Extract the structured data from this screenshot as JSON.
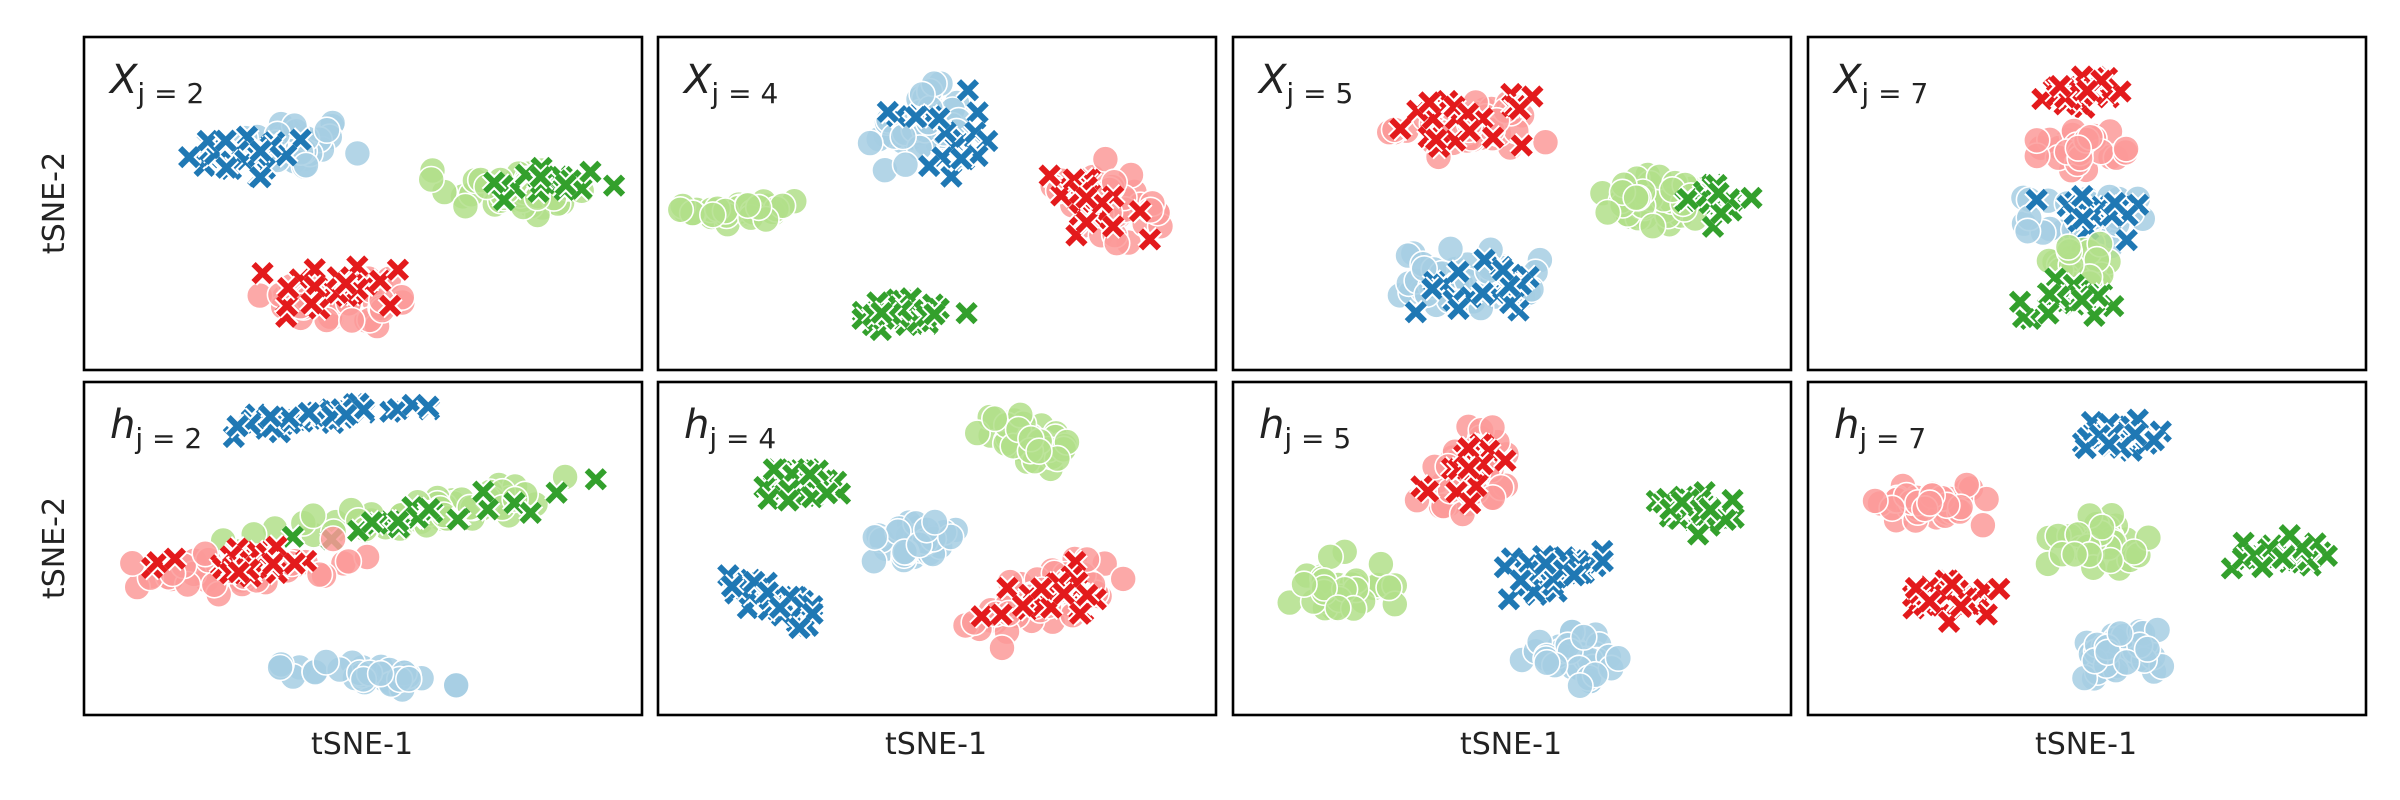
{
  "figure": {
    "ylabel": "tSNE-2",
    "xlabel": "tSNE-1"
  },
  "chart_data": {
    "type": "scatter",
    "grid": false,
    "ticks": false,
    "xlabel": "tSNE-1",
    "ylabel": "tSNE-2",
    "xlim": [
      0,
      100
    ],
    "ylim": [
      0,
      100
    ],
    "classes": [
      {
        "id": "A",
        "color": "#a6cee3",
        "marker": "circle"
      },
      {
        "id": "B",
        "color": "#1f78b4",
        "marker": "x"
      },
      {
        "id": "C",
        "color": "#b2df8a",
        "marker": "circle"
      },
      {
        "id": "D",
        "color": "#33a02c",
        "marker": "x"
      },
      {
        "id": "E",
        "color": "#fb9a99",
        "marker": "circle"
      },
      {
        "id": "F",
        "color": "#e31a1c",
        "marker": "x"
      }
    ],
    "panels": [
      {
        "symbol": "X",
        "subscript": "j = 2",
        "row": 0,
        "col": 0,
        "clusters": [
          {
            "cls": "A",
            "cx": 38,
            "cy": 68,
            "rx": 11,
            "ry": 9,
            "angle": 0,
            "n": 40
          },
          {
            "cls": "B",
            "cx": 30,
            "cy": 64,
            "rx": 13,
            "ry": 8,
            "angle": 0,
            "n": 26
          },
          {
            "cls": "C",
            "cx": 77,
            "cy": 54,
            "rx": 15,
            "ry": 9,
            "angle": -5,
            "n": 45
          },
          {
            "cls": "D",
            "cx": 82,
            "cy": 56,
            "rx": 13,
            "ry": 7,
            "angle": -5,
            "n": 18
          },
          {
            "cls": "E",
            "cx": 47,
            "cy": 21,
            "rx": 16,
            "ry": 10,
            "angle": 0,
            "n": 45
          },
          {
            "cls": "F",
            "cx": 46,
            "cy": 25,
            "rx": 14,
            "ry": 9,
            "angle": 0,
            "n": 22
          }
        ]
      },
      {
        "symbol": "X",
        "subscript": "j = 4",
        "row": 0,
        "col": 1,
        "clusters": [
          {
            "cls": "A",
            "cx": 47,
            "cy": 73,
            "rx": 9,
            "ry": 13,
            "angle": 0,
            "n": 45
          },
          {
            "cls": "B",
            "cx": 50,
            "cy": 70,
            "rx": 9,
            "ry": 14,
            "angle": 0,
            "n": 20
          },
          {
            "cls": "C",
            "cx": 16,
            "cy": 48,
            "rx": 12,
            "ry": 6,
            "angle": 0,
            "n": 35
          },
          {
            "cls": "D",
            "cx": 44,
            "cy": 17,
            "rx": 12,
            "ry": 5,
            "angle": 0,
            "n": 30
          },
          {
            "cls": "E",
            "cx": 81,
            "cy": 50,
            "rx": 8,
            "ry": 13,
            "angle": 35,
            "n": 40
          },
          {
            "cls": "F",
            "cx": 78,
            "cy": 48,
            "rx": 8,
            "ry": 13,
            "angle": 35,
            "n": 22
          }
        ]
      },
      {
        "symbol": "X",
        "subscript": "j = 5",
        "row": 0,
        "col": 2,
        "clusters": [
          {
            "cls": "E",
            "cx": 42,
            "cy": 73,
            "rx": 14,
            "ry": 9,
            "angle": 0,
            "n": 45
          },
          {
            "cls": "F",
            "cx": 42,
            "cy": 75,
            "rx": 12,
            "ry": 8,
            "angle": 0,
            "n": 22
          },
          {
            "cls": "C",
            "cx": 77,
            "cy": 50,
            "rx": 15,
            "ry": 9,
            "angle": 0,
            "n": 45
          },
          {
            "cls": "D",
            "cx": 86,
            "cy": 51,
            "rx": 8,
            "ry": 8,
            "angle": 0,
            "n": 18
          },
          {
            "cls": "A",
            "cx": 42,
            "cy": 27,
            "rx": 13,
            "ry": 10,
            "angle": 0,
            "n": 45
          },
          {
            "cls": "B",
            "cx": 44,
            "cy": 25,
            "rx": 12,
            "ry": 9,
            "angle": 0,
            "n": 22
          }
        ]
      },
      {
        "symbol": "X",
        "subscript": "j = 7",
        "row": 0,
        "col": 3,
        "clusters": [
          {
            "cls": "F",
            "cx": 49,
            "cy": 84,
            "rx": 7,
            "ry": 6,
            "angle": 0,
            "n": 30
          },
          {
            "cls": "E",
            "cx": 49,
            "cy": 67,
            "rx": 8,
            "ry": 7,
            "angle": 0,
            "n": 30
          },
          {
            "cls": "A",
            "cx": 49,
            "cy": 45,
            "rx": 11,
            "ry": 9,
            "angle": 0,
            "n": 40
          },
          {
            "cls": "B",
            "cx": 51,
            "cy": 47,
            "rx": 10,
            "ry": 8,
            "angle": 0,
            "n": 20
          },
          {
            "cls": "C",
            "cx": 49,
            "cy": 31,
            "rx": 10,
            "ry": 7,
            "angle": 0,
            "n": 30
          },
          {
            "cls": "D",
            "cx": 47,
            "cy": 22,
            "rx": 9,
            "ry": 7,
            "angle": 0,
            "n": 28
          }
        ]
      },
      {
        "symbol": "h",
        "subscript": "j = 2",
        "row": 1,
        "col": 0,
        "clusters": [
          {
            "cls": "B",
            "cx": 41,
            "cy": 89,
            "rx": 21,
            "ry": 3,
            "angle": 10,
            "n": 40
          },
          {
            "cls": "C",
            "cx": 60,
            "cy": 61,
            "rx": 36,
            "ry": 6,
            "angle": 18,
            "n": 55
          },
          {
            "cls": "D",
            "cx": 60,
            "cy": 59,
            "rx": 34,
            "ry": 5,
            "angle": 18,
            "n": 22
          },
          {
            "cls": "E",
            "cx": 30,
            "cy": 44,
            "rx": 21,
            "ry": 7,
            "angle": 7,
            "n": 45
          },
          {
            "cls": "F",
            "cx": 28,
            "cy": 46,
            "rx": 20,
            "ry": 6,
            "angle": 7,
            "n": 22
          },
          {
            "cls": "A",
            "cx": 51,
            "cy": 12,
            "rx": 16,
            "ry": 4,
            "angle": -10,
            "n": 35
          }
        ]
      },
      {
        "symbol": "h",
        "subscript": "j = 4",
        "row": 1,
        "col": 1,
        "clusters": [
          {
            "cls": "C",
            "cx": 67,
            "cy": 82,
            "rx": 10,
            "ry": 7,
            "angle": -25,
            "n": 40
          },
          {
            "cls": "D",
            "cx": 26,
            "cy": 69,
            "rx": 10,
            "ry": 7,
            "angle": 25,
            "n": 35
          },
          {
            "cls": "A",
            "cx": 46,
            "cy": 53,
            "rx": 10,
            "ry": 7,
            "angle": 40,
            "n": 35
          },
          {
            "cls": "B",
            "cx": 22,
            "cy": 33,
            "rx": 13,
            "ry": 5,
            "angle": -45,
            "n": 35
          },
          {
            "cls": "E",
            "cx": 70,
            "cy": 37,
            "rx": 18,
            "ry": 9,
            "angle": 35,
            "n": 50
          },
          {
            "cls": "F",
            "cx": 70,
            "cy": 35,
            "rx": 16,
            "ry": 7,
            "angle": 35,
            "n": 25
          }
        ]
      },
      {
        "symbol": "h",
        "subscript": "j = 5",
        "row": 1,
        "col": 2,
        "clusters": [
          {
            "cls": "E",
            "cx": 42,
            "cy": 73,
            "rx": 14,
            "ry": 8,
            "angle": 65,
            "n": 45
          },
          {
            "cls": "F",
            "cx": 42,
            "cy": 76,
            "rx": 11,
            "ry": 6,
            "angle": 65,
            "n": 22
          },
          {
            "cls": "D",
            "cx": 83,
            "cy": 61,
            "rx": 9,
            "ry": 6,
            "angle": -25,
            "n": 30
          },
          {
            "cls": "B",
            "cx": 57,
            "cy": 43,
            "rx": 12,
            "ry": 6,
            "angle": 15,
            "n": 35
          },
          {
            "cls": "C",
            "cx": 19,
            "cy": 39,
            "rx": 10,
            "ry": 10,
            "angle": 0,
            "n": 35
          },
          {
            "cls": "A",
            "cx": 62,
            "cy": 17,
            "rx": 10,
            "ry": 8,
            "angle": 15,
            "n": 35
          }
        ]
      },
      {
        "symbol": "h",
        "subscript": "j = 7",
        "row": 1,
        "col": 3,
        "clusters": [
          {
            "cls": "B",
            "cx": 56,
            "cy": 83,
            "rx": 9,
            "ry": 7,
            "angle": 0,
            "n": 35
          },
          {
            "cls": "E",
            "cx": 22,
            "cy": 64,
            "rx": 10,
            "ry": 7,
            "angle": 0,
            "n": 40
          },
          {
            "cls": "C",
            "cx": 52,
            "cy": 52,
            "rx": 9,
            "ry": 8,
            "angle": 0,
            "n": 40
          },
          {
            "cls": "D",
            "cx": 84,
            "cy": 48,
            "rx": 9,
            "ry": 6,
            "angle": 0,
            "n": 30
          },
          {
            "cls": "F",
            "cx": 25,
            "cy": 34,
            "rx": 9,
            "ry": 8,
            "angle": -30,
            "n": 35
          },
          {
            "cls": "A",
            "cx": 56,
            "cy": 19,
            "rx": 9,
            "ry": 8,
            "angle": 0,
            "n": 40
          }
        ]
      }
    ]
  }
}
